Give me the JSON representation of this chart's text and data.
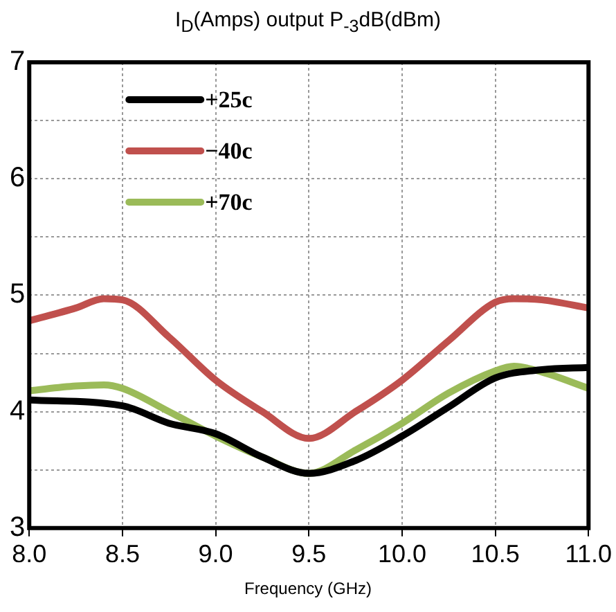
{
  "chart_data": {
    "type": "line",
    "title": "I$_{D}$(Amps) output P$_{-3}$dB(dBm)",
    "xlabel": "Frequency (GHz)",
    "xlim": [
      8,
      11
    ],
    "xticks": [
      {
        "value": 8,
        "label": "8.0"
      },
      {
        "value": 8.5,
        "label": "8.5"
      },
      {
        "value": 9,
        "label": "9.0"
      },
      {
        "value": 9.5,
        "label": "9.5"
      },
      {
        "value": 10,
        "label": "10.0"
      },
      {
        "value": 10.5,
        "label": "10.5"
      },
      {
        "value": 11,
        "label": "11.0"
      }
    ],
    "ylim": [
      3,
      7
    ],
    "yticks": [
      3,
      {
        "value": 3.5,
        "label": null
      },
      4,
      {
        "value": 4.5,
        "label": null
      },
      5,
      {
        "value": 5.5,
        "label": null
      },
      6,
      {
        "value": 6.5,
        "label": null
      },
      7
    ],
    "grid": true,
    "legend": "top left",
    "marker": "none",
    "line_style": "solid",
    "series": [
      {
        "name": "+25c",
        "color": "#000000",
        "x": [
          8,
          8.5,
          8.75,
          9,
          9.25,
          9.5,
          9.75,
          10,
          10.25,
          10.5,
          10.75,
          11
        ],
        "values": [
          4.1,
          4.05,
          3.9,
          3.81,
          3.61,
          3.47,
          3.58,
          3.79,
          4.04,
          4.29,
          4.36,
          4.38
        ]
      },
      {
        "name": "−40c",
        "color": "#c0504d",
        "x": [
          8,
          8.25,
          8.4,
          8.5,
          8.75,
          9,
          9.25,
          9.5,
          9.75,
          10,
          10.25,
          10.5,
          10.6,
          10.75,
          11
        ],
        "values": [
          4.78,
          4.89,
          4.97,
          4.96,
          4.64,
          4.27,
          4.0,
          3.77,
          4.0,
          4.27,
          4.61,
          4.94,
          4.97,
          4.96,
          4.89
        ]
      },
      {
        "name": "+70c",
        "color": "#9bbb59",
        "x": [
          8,
          8.25,
          8.4,
          8.5,
          8.75,
          9,
          9.25,
          9.5,
          9.75,
          10,
          10.25,
          10.5,
          10.6,
          10.75,
          11
        ],
        "values": [
          4.18,
          4.22,
          4.23,
          4.2,
          4.0,
          3.79,
          3.61,
          3.47,
          3.67,
          3.9,
          4.16,
          4.35,
          4.39,
          4.34,
          4.2
        ]
      }
    ]
  }
}
